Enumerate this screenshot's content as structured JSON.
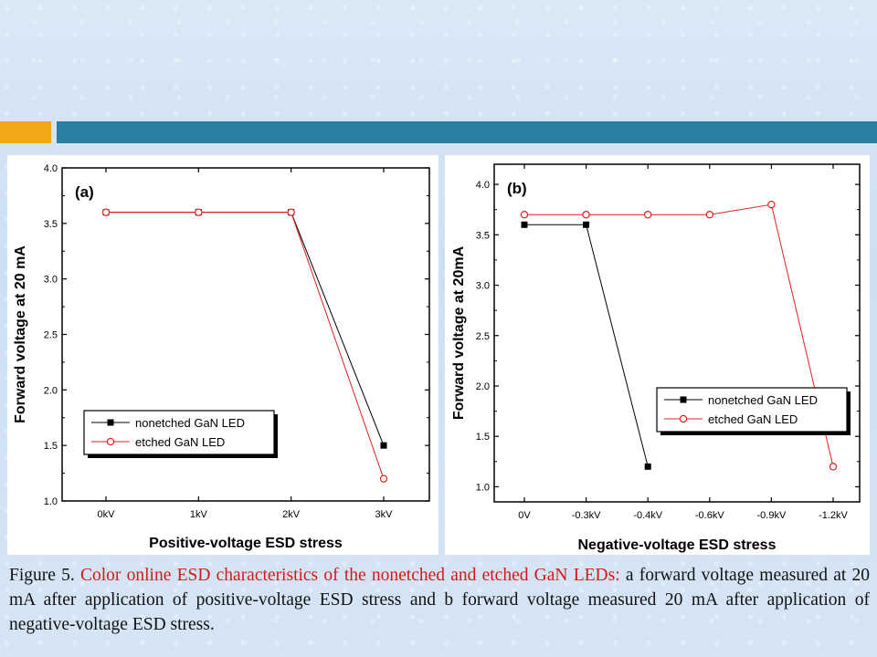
{
  "colors": {
    "accent_orange": "#f0a818",
    "accent_teal": "#2b7fa0",
    "caption_red": "#d81818",
    "series_black": "#000000",
    "series_red": "#e02020"
  },
  "chart_data": [
    {
      "type": "line",
      "panel_label": "(a)",
      "xlabel": "Positive-voltage ESD stress",
      "ylabel": "Forward voltage at 20 mA",
      "categories": [
        "0kV",
        "1kV",
        "2kV",
        "3kV"
      ],
      "ylim": [
        1.0,
        4.0
      ],
      "yticks": [
        1.0,
        1.5,
        2.0,
        2.5,
        3.0,
        3.5,
        4.0
      ],
      "ytick_labels": [
        "1.0",
        "1.5",
        "2.0",
        "2.5",
        "3.0",
        "3.5",
        "4.0"
      ],
      "legend_position": "lower-left",
      "series": [
        {
          "name": "nonetched GaN LED",
          "marker": "filled-square",
          "color": "#000000",
          "values": [
            3.6,
            3.6,
            3.6,
            1.5
          ]
        },
        {
          "name": "etched GaN LED",
          "marker": "open-circle",
          "color": "#e02020",
          "values": [
            3.6,
            3.6,
            3.6,
            1.2
          ]
        }
      ]
    },
    {
      "type": "line",
      "panel_label": "(b)",
      "xlabel": "Negative-voltage ESD stress",
      "ylabel": "Forward voltage at 20mA",
      "categories": [
        "0V",
        "-0.3kV",
        "-0.4kV",
        "-0.6kV",
        "-0.9kV",
        "-1.2kV"
      ],
      "ylim": [
        0.85,
        4.2
      ],
      "yticks": [
        1.0,
        1.5,
        2.0,
        2.5,
        3.0,
        3.5,
        4.0
      ],
      "ytick_labels": [
        "1.0",
        "1.5",
        "2.0",
        "2.5",
        "3.0",
        "3.5",
        "4.0"
      ],
      "legend_position": "lower-right",
      "series": [
        {
          "name": "nonetched GaN LED",
          "marker": "filled-square",
          "color": "#000000",
          "values": [
            3.6,
            3.6,
            1.2,
            null,
            null,
            null
          ]
        },
        {
          "name": "etched GaN LED",
          "marker": "open-circle",
          "color": "#e02020",
          "values": [
            3.7,
            3.7,
            3.7,
            3.7,
            3.8,
            1.2
          ]
        }
      ]
    }
  ],
  "caption": {
    "prefix": "Figure 5. ",
    "body_red": "Color online ESD characteristics of the nonetched and etched GaN LEDs: ",
    "body_black": "a forward voltage measured at 20 mA after application of positive-voltage ESD stress and b forward voltage measured 20 mA after application of negative-voltage ESD stress."
  }
}
